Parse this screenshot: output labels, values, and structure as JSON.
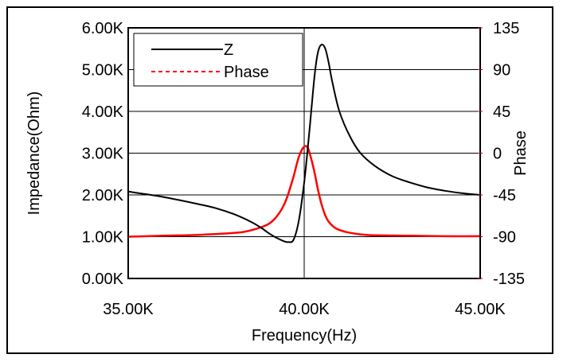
{
  "chart_data": {
    "type": "line",
    "title": "",
    "xlabel": "Frequency(Hz)",
    "ylabel": "Impedance(Ohm)",
    "y2label": "Phase",
    "xlim": [
      35000,
      45000
    ],
    "ylim": [
      0,
      6000
    ],
    "y2lim": [
      -135,
      135
    ],
    "x_ticks": [
      "35.00K",
      "40.00K",
      "45.00K"
    ],
    "y_ticks": [
      "0.00K",
      "1.00K",
      "2.00K",
      "3.00K",
      "4.00K",
      "5.00K",
      "6.00K"
    ],
    "y2_ticks": [
      "-135",
      "-90",
      "-45",
      "0",
      "45",
      "90",
      "135"
    ],
    "grid": true,
    "legend_position": "top-left",
    "series": [
      {
        "name": "Z",
        "axis": "left",
        "color": "#000000",
        "style": "solid",
        "x": [
          35000,
          36000,
          37000,
          37500,
          38000,
          38500,
          38800,
          39000,
          39200,
          39400,
          39550,
          39700,
          39850,
          40000,
          40100,
          40200,
          40300,
          40400,
          40500,
          40600,
          40700,
          40800,
          41000,
          41300,
          41600,
          42000,
          42500,
          43000,
          43500,
          44000,
          44500,
          45000
        ],
        "values": [
          2080,
          1950,
          1780,
          1680,
          1540,
          1350,
          1200,
          1080,
          980,
          900,
          870,
          930,
          1400,
          2300,
          3100,
          4000,
          4900,
          5450,
          5600,
          5500,
          5150,
          4700,
          4000,
          3400,
          3000,
          2700,
          2450,
          2300,
          2180,
          2100,
          2040,
          2000
        ]
      },
      {
        "name": "Phase",
        "axis": "right",
        "color": "#ff0000",
        "style": "dashed",
        "x": [
          35000,
          36000,
          37000,
          38000,
          38500,
          39000,
          39300,
          39500,
          39700,
          39800,
          39900,
          40000,
          40100,
          40200,
          40300,
          40400,
          40500,
          40600,
          40700,
          40900,
          41200,
          41600,
          42000,
          43000,
          44000,
          45000
        ],
        "values": [
          -90,
          -89,
          -88,
          -86,
          -83,
          -76,
          -64,
          -49,
          -25,
          -10,
          1,
          7,
          6,
          -6,
          -22,
          -41,
          -56,
          -67,
          -74,
          -81,
          -85,
          -87.5,
          -88.5,
          -89,
          -89.5,
          -89.5
        ]
      }
    ]
  }
}
